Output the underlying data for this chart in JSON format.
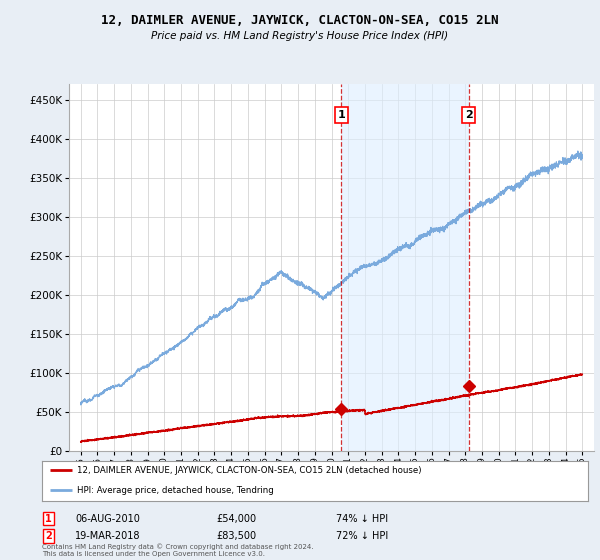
{
  "title": "12, DAIMLER AVENUE, JAYWICK, CLACTON-ON-SEA, CO15 2LN",
  "subtitle": "Price paid vs. HM Land Registry's House Price Index (HPI)",
  "property_label": "12, DAIMLER AVENUE, JAYWICK, CLACTON-ON-SEA, CO15 2LN (detached house)",
  "hpi_label": "HPI: Average price, detached house, Tendring",
  "property_color": "#cc0000",
  "hpi_color": "#7aaadd",
  "shade_color": "#ddeeff",
  "purchase1_date": 2010.59,
  "purchase1_price": 54000,
  "purchase2_date": 2018.21,
  "purchase2_price": 83500,
  "annotation1_date": "06-AUG-2010",
  "annotation1_price": "£54,000",
  "annotation1_hpi": "74% ↓ HPI",
  "annotation2_date": "19-MAR-2018",
  "annotation2_price": "£83,500",
  "annotation2_hpi": "72% ↓ HPI",
  "footer": "Contains HM Land Registry data © Crown copyright and database right 2024.\nThis data is licensed under the Open Government Licence v3.0.",
  "ylim": [
    0,
    470000
  ],
  "yticks": [
    0,
    50000,
    100000,
    150000,
    200000,
    250000,
    300000,
    350000,
    400000,
    450000
  ],
  "background_color": "#e8eef5",
  "plot_bg_color": "#ffffff",
  "grid_color": "#cccccc"
}
